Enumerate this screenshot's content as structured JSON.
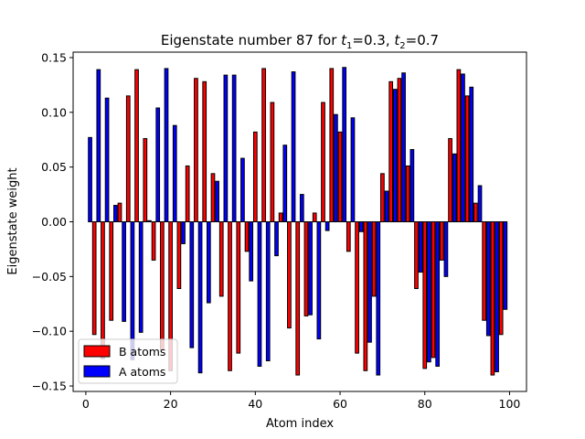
{
  "chart_data": {
    "type": "bar",
    "title_parts": {
      "prefix": "Eigenstate number 87 for ",
      "t1_base": "t",
      "t1_sub": "1",
      "t1_val": "=0.3, ",
      "t2_base": "t",
      "t2_sub": "2",
      "t2_val": "=0.7"
    },
    "xlabel": "Atom index",
    "ylabel": "Eigenstate weight",
    "xlim": [
      -3,
      104
    ],
    "ylim": [
      -0.155,
      0.155
    ],
    "xticks": [
      0,
      20,
      40,
      60,
      80,
      100
    ],
    "yticks": [
      -0.15,
      -0.1,
      -0.05,
      0.0,
      0.05,
      0.1,
      0.15
    ],
    "ytick_labels": [
      "−0.15",
      "−0.10",
      "−0.05",
      "0.00",
      "0.05",
      "0.10",
      "0.15"
    ],
    "legend": {
      "placement": "lower-left",
      "entries": [
        "B atoms",
        "A atoms"
      ]
    },
    "grid": false,
    "series": [
      {
        "name": "B atoms",
        "color": "#ff0000",
        "x": [
          2,
          4,
          6,
          8,
          10,
          12,
          14,
          16,
          18,
          20,
          22,
          24,
          26,
          28,
          30,
          32,
          34,
          36,
          38,
          40,
          42,
          44,
          46,
          48,
          50,
          52,
          54,
          56,
          58,
          60,
          62,
          64,
          66,
          68,
          70,
          72,
          74,
          76,
          78,
          80,
          82,
          84,
          86,
          88,
          90,
          92,
          94,
          96,
          98
        ],
        "values": [
          -0.103,
          -0.125,
          -0.09,
          0.017,
          0.115,
          0.139,
          0.076,
          -0.035,
          -0.117,
          -0.136,
          -0.061,
          0.051,
          0.131,
          0.128,
          0.044,
          -0.068,
          -0.136,
          -0.12,
          -0.027,
          0.082,
          0.14,
          0.109,
          0.008,
          -0.097,
          -0.14,
          -0.086,
          0.008,
          0.109,
          0.14,
          0.082,
          -0.027,
          -0.12,
          -0.136,
          -0.068,
          0.044,
          0.128,
          0.131,
          0.051,
          -0.061,
          -0.134,
          -0.124,
          -0.035,
          0.076,
          0.139,
          0.115,
          0.017,
          -0.09,
          -0.14,
          -0.103
        ]
      },
      {
        "name": "A atoms",
        "color": "#0000ff",
        "x": [
          1,
          3,
          5,
          7,
          9,
          11,
          13,
          15,
          17,
          19,
          21,
          23,
          25,
          27,
          29,
          31,
          33,
          35,
          37,
          39,
          41,
          43,
          45,
          47,
          49,
          51,
          53,
          55,
          57,
          59,
          61,
          63,
          65,
          67,
          69,
          71,
          73,
          75,
          77,
          79,
          81,
          83,
          85,
          87,
          89,
          91,
          93,
          95,
          97,
          99
        ],
        "values": [
          0.077,
          0.139,
          0.113,
          0.015,
          -0.091,
          -0.126,
          -0.101,
          0.001,
          0.104,
          0.14,
          0.088,
          -0.02,
          -0.115,
          -0.138,
          -0.074,
          0.037,
          0.134,
          0.134,
          0.058,
          -0.054,
          -0.132,
          -0.127,
          -0.031,
          0.07,
          0.137,
          0.025,
          -0.085,
          -0.107,
          -0.008,
          0.098,
          0.141,
          0.095,
          -0.009,
          -0.11,
          -0.14,
          0.028,
          0.121,
          0.136,
          0.066,
          -0.046,
          -0.128,
          -0.132,
          -0.05,
          0.062,
          0.135,
          0.123,
          0.033,
          -0.104,
          -0.137,
          -0.08
        ]
      }
    ]
  }
}
